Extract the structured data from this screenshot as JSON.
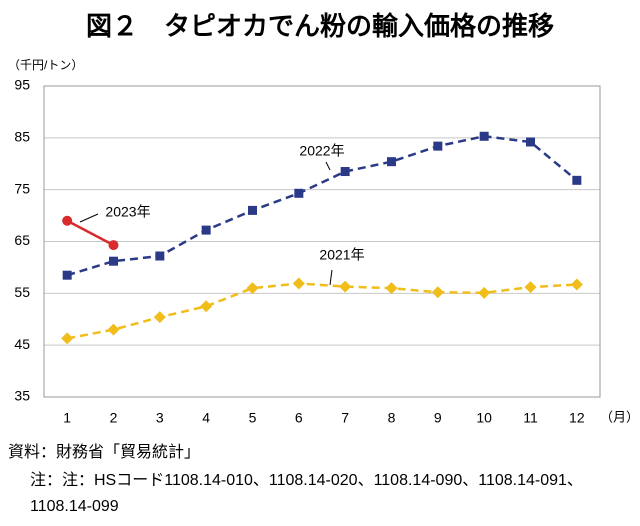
{
  "chart_data": {
    "type": "line",
    "title": "図２　タピオカでん粉の輸入価格の推移",
    "y_label": "（千円/トン）",
    "x_label": "（月）",
    "categories": [
      "1",
      "2",
      "3",
      "4",
      "5",
      "6",
      "7",
      "8",
      "9",
      "10",
      "11",
      "12"
    ],
    "series": [
      {
        "name": "2022年",
        "color": "#2b3a87",
        "marker": "square",
        "dashed": true,
        "values": [
          58.5,
          61.2,
          62.2,
          67.2,
          71.0,
          74.3,
          78.5,
          80.4,
          83.4,
          85.3,
          84.2,
          76.8
        ]
      },
      {
        "name": "2021年",
        "color": "#f0bd1b",
        "marker": "diamond",
        "dashed": true,
        "values": [
          46.3,
          48.0,
          50.4,
          52.5,
          56.0,
          56.9,
          56.3,
          56.0,
          55.2,
          55.1,
          56.2,
          56.7
        ]
      },
      {
        "name": "2023年",
        "color": "#d92b2b",
        "marker": "circle",
        "dashed": false,
        "values": [
          69.0,
          64.3,
          null,
          null,
          null,
          null,
          null,
          null,
          null,
          null,
          null,
          null
        ]
      }
    ],
    "ylim": [
      35,
      95
    ],
    "yticks": [
      35,
      45,
      55,
      65,
      75,
      85,
      95
    ],
    "grid": true,
    "source": "資料：財務省「貿易統計」",
    "note": "注：注：HSコード1108.14-010、1108.14-020、1108.14-090、1108.14-091、1108.14-099"
  }
}
